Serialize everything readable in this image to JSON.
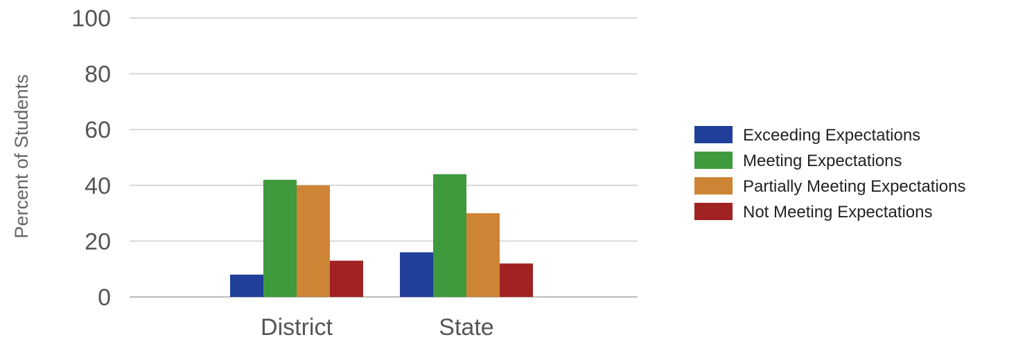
{
  "chart_data": {
    "type": "bar",
    "title": "",
    "xlabel": "",
    "ylabel": "Percent of Students",
    "ylim": [
      0,
      100
    ],
    "yticks": [
      "0",
      "20",
      "40",
      "60",
      "80",
      "100"
    ],
    "grid": true,
    "legend_position": "right",
    "categories": [
      "District",
      "State"
    ],
    "series": [
      {
        "name": "Exceeding Expectations",
        "color": "#1f3f99",
        "values": [
          8,
          16
        ]
      },
      {
        "name": "Meeting Expectations",
        "color": "#3e9a3c",
        "values": [
          42,
          44
        ]
      },
      {
        "name": "Partially Meeting Expectations",
        "color": "#cd8434",
        "values": [
          40,
          30
        ]
      },
      {
        "name": "Not Meeting Expectations",
        "color": "#a12222",
        "values": [
          13,
          12
        ]
      }
    ]
  }
}
